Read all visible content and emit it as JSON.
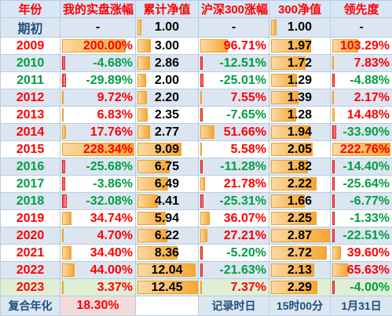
{
  "headers": [
    "年份",
    "我的实盘涨幅",
    "累计净值",
    "沪深300涨幅",
    "300净值",
    "领先度"
  ],
  "initial": {
    "label": "期初",
    "my": "-",
    "nav": "1.00",
    "hs": "-",
    "hsnav": "1.00",
    "lead": "-"
  },
  "rows": [
    {
      "year": "2009",
      "my": "200.00%",
      "nav": "3.00",
      "hs": "96.71%",
      "hsnav": "1.97",
      "lead": "103.29%"
    },
    {
      "year": "2010",
      "my": "-4.68%",
      "nav": "2.86",
      "hs": "-12.51%",
      "hsnav": "1.72",
      "lead": "7.83%"
    },
    {
      "year": "2011",
      "my": "-29.89%",
      "nav": "2.00",
      "hs": "-25.01%",
      "hsnav": "1.29",
      "lead": "-4.88%"
    },
    {
      "year": "2012",
      "my": "9.72%",
      "nav": "2.20",
      "hs": "7.55%",
      "hsnav": "1.39",
      "lead": "2.17%"
    },
    {
      "year": "2013",
      "my": "6.83%",
      "nav": "2.35",
      "hs": "-7.65%",
      "hsnav": "1.28",
      "lead": "14.48%"
    },
    {
      "year": "2014",
      "my": "17.76%",
      "nav": "2.77",
      "hs": "51.66%",
      "hsnav": "1.94",
      "lead": "-33.90%"
    },
    {
      "year": "2015",
      "my": "228.34%",
      "nav": "9.09",
      "hs": "5.58%",
      "hsnav": "2.05",
      "lead": "222.76%"
    },
    {
      "year": "2016",
      "my": "-25.68%",
      "nav": "6.75",
      "hs": "-11.28%",
      "hsnav": "1.82",
      "lead": "-14.40%"
    },
    {
      "year": "2017",
      "my": "-3.86%",
      "nav": "6.49",
      "hs": "21.78%",
      "hsnav": "2.22",
      "lead": "-25.64%"
    },
    {
      "year": "2018",
      "my": "-32.08%",
      "nav": "4.41",
      "hs": "-25.31%",
      "hsnav": "1.66",
      "lead": "-6.77%"
    },
    {
      "year": "2019",
      "my": "34.74%",
      "nav": "5.94",
      "hs": "36.07%",
      "hsnav": "2.25",
      "lead": "-1.33%"
    },
    {
      "year": "2020",
      "my": "4.70%",
      "nav": "6.22",
      "hs": "27.21%",
      "hsnav": "2.87",
      "lead": "-22.51%"
    },
    {
      "year": "2021",
      "my": "34.40%",
      "nav": "8.36",
      "hs": "-5.20%",
      "hsnav": "2.72",
      "lead": "39.60%"
    },
    {
      "year": "2022",
      "my": "44.00%",
      "nav": "12.04",
      "hs": "-21.63%",
      "hsnav": "2.13",
      "lead": "65.63%"
    },
    {
      "year": "2023",
      "my": "3.37%",
      "nav": "12.45",
      "hs": "7.37%",
      "hsnav": "2.29",
      "lead": "-4.00%"
    }
  ],
  "footer": {
    "label": "复合年化",
    "value": "18.30%",
    "record_label": "记录时日",
    "time": "15时00分",
    "date": "1月31日"
  },
  "colors": {
    "positive": "#ff0000",
    "negative": "#00a040",
    "header_bg": "#d9e6f5",
    "bar_pos": "#f5a732",
    "bar_neg": "#ff3b3b"
  }
}
